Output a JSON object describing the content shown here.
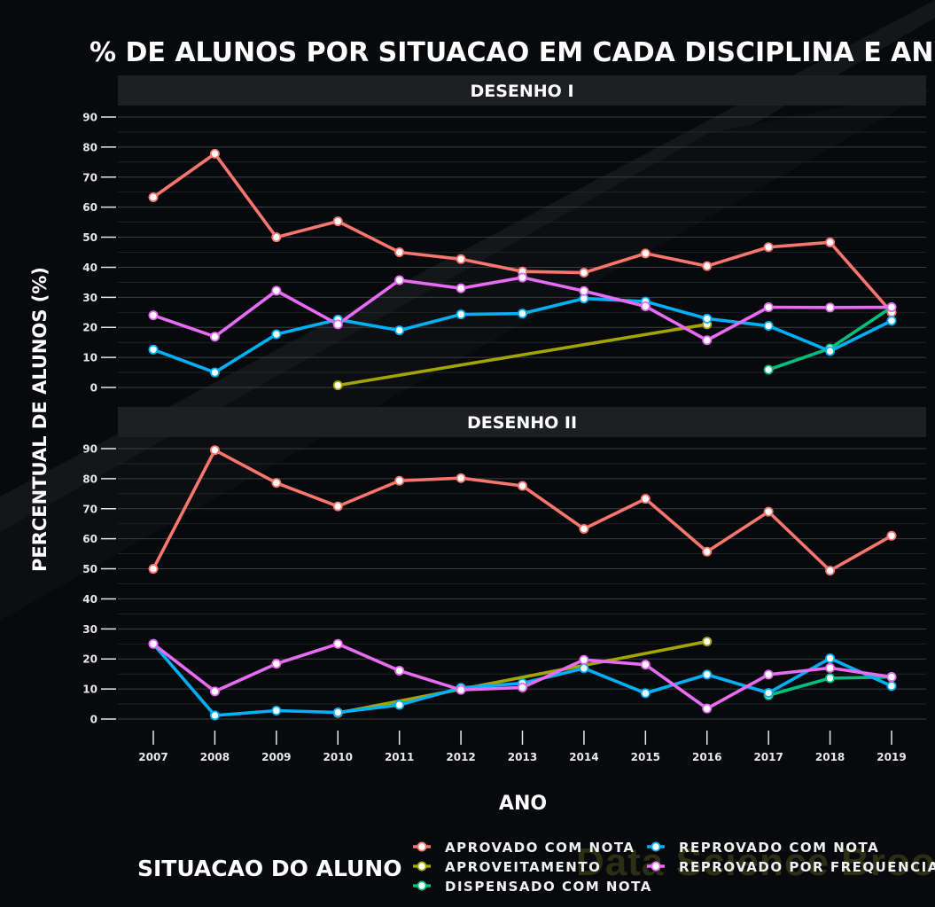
{
  "chart_data": {
    "type": "line",
    "title": "% DE ALUNOS POR SITUACAO EM CADA DISCIPLINA E ANO",
    "xlabel": "ANO",
    "ylabel": "PERCENTUAL DE ALUNOS (%)",
    "x": [
      "2007",
      "2008",
      "2009",
      "2010",
      "2011",
      "2012",
      "2013",
      "2014",
      "2015",
      "2016",
      "2017",
      "2018",
      "2019"
    ],
    "y_ticks": [
      "0",
      "10",
      "20",
      "30",
      "40",
      "50",
      "60",
      "70",
      "80",
      "90"
    ],
    "ylim": [
      0,
      90
    ],
    "legend_title": "SITUACAO DO ALUNO",
    "legend_position": "bottom",
    "grid": true,
    "series_styles": [
      {
        "name": "APROVADO COM NOTA",
        "color": "#f8766d"
      },
      {
        "name": "APROVEITAMENTO",
        "color": "#a3a500"
      },
      {
        "name": "DISPENSADO COM NOTA",
        "color": "#00bf7d"
      },
      {
        "name": "REPROVADO COM NOTA",
        "color": "#00b0f6"
      },
      {
        "name": "REPROVADO POR FREQUENCIA",
        "color": "#e76bf3"
      }
    ],
    "panels": [
      {
        "name": "DESENHO I",
        "series": [
          {
            "name": "APROVADO COM NOTA",
            "values": [
              63.3,
              77.8,
              50,
              55.3,
              45,
              42.7,
              38.6,
              38.2,
              44.6,
              40.4,
              46.7,
              48.3,
              25
            ]
          },
          {
            "name": "APROVEITAMENTO",
            "values": [
              null,
              null,
              null,
              0.7,
              null,
              null,
              null,
              null,
              null,
              21,
              null,
              null,
              null
            ]
          },
          {
            "name": "DISPENSADO COM NOTA",
            "values": [
              null,
              null,
              null,
              null,
              null,
              null,
              null,
              null,
              null,
              null,
              5.9,
              13,
              26.7
            ]
          },
          {
            "name": "REPROVADO COM NOTA",
            "values": [
              12.6,
              5,
              17.7,
              22.6,
              19,
              24.3,
              24.6,
              29.6,
              28.6,
              22.9,
              20.5,
              12.1,
              22.2
            ]
          },
          {
            "name": "REPROVADO POR FREQUENCIA",
            "values": [
              24,
              16.9,
              32.2,
              21,
              35.7,
              33,
              36.6,
              32.1,
              27,
              15.7,
              26.7,
              26.6,
              26.7
            ]
          }
        ]
      },
      {
        "name": "DESENHO II",
        "series": [
          {
            "name": "APROVADO COM NOTA",
            "values": [
              50,
              89.5,
              78.6,
              70.8,
              79.3,
              80.2,
              77.6,
              63.3,
              73.3,
              55.7,
              69,
              49.4,
              61
            ]
          },
          {
            "name": "APROVEITAMENTO",
            "values": [
              null,
              null,
              null,
              2,
              null,
              null,
              null,
              null,
              null,
              25.8,
              null,
              null,
              null
            ]
          },
          {
            "name": "DISPENSADO COM NOTA",
            "values": [
              null,
              null,
              null,
              null,
              null,
              null,
              null,
              null,
              null,
              null,
              7.9,
              13.6,
              14
            ]
          },
          {
            "name": "REPROVADO COM NOTA",
            "values": [
              25,
              1.2,
              2.8,
              2.2,
              4.7,
              10.4,
              11.9,
              16.9,
              8.6,
              14.8,
              8.7,
              20.2,
              11
            ]
          },
          {
            "name": "REPROVADO POR FREQUENCIA",
            "values": [
              25,
              9.2,
              18.4,
              25,
              16.1,
              9.7,
              10.5,
              19.7,
              18.1,
              3.5,
              14.8,
              17,
              14
            ]
          }
        ]
      }
    ]
  },
  "watermark": "Data Science Broon"
}
